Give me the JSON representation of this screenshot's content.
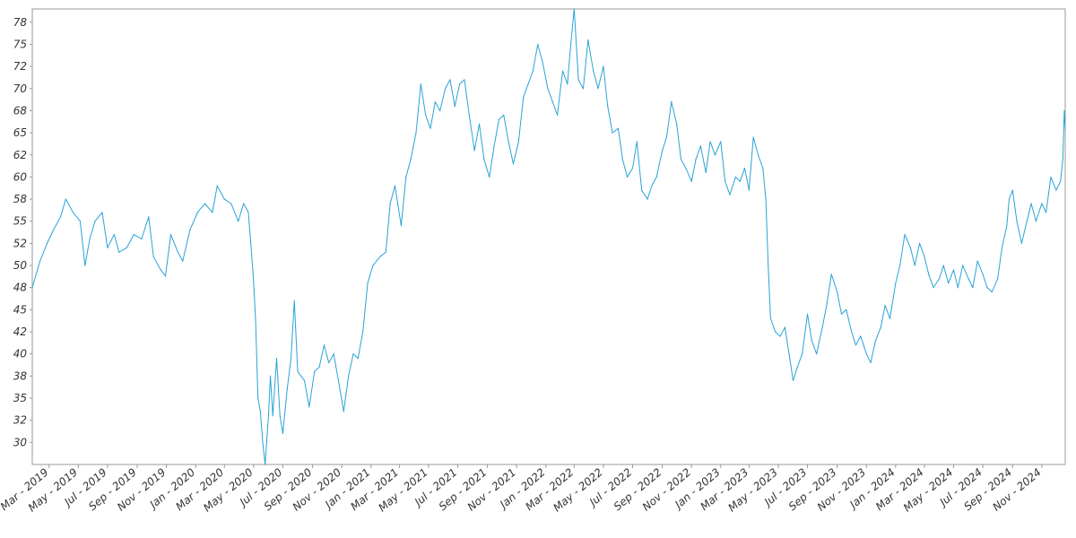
{
  "chart_data": {
    "type": "line",
    "title": "",
    "xlabel": "",
    "ylabel": "",
    "x_range": [
      "2019-01-25",
      "2024-12-20"
    ],
    "ylim": [
      27.5,
      79
    ],
    "y_ticks": [
      30,
      32,
      35,
      38,
      40,
      42,
      45,
      48,
      50,
      52,
      55,
      58,
      60,
      62,
      65,
      68,
      70,
      72,
      75,
      78
    ],
    "y_tick_values": [
      30,
      32.5,
      35,
      37.5,
      40,
      42.5,
      45,
      47.5,
      50,
      52.5,
      55,
      57.5,
      60,
      62.5,
      65,
      67.5,
      70,
      72.5,
      75,
      77.5
    ],
    "x_ticks": [
      "Mar - 2019",
      "May - 2019",
      "Jul - 2019",
      "Sep - 2019",
      "Nov - 2019",
      "Jan - 2020",
      "Mar - 2020",
      "May - 2020",
      "Jul - 2020",
      "Sep - 2020",
      "Nov - 2020",
      "Jan - 2021",
      "Mar - 2021",
      "May - 2021",
      "Jul - 2021",
      "Sep - 2021",
      "Nov - 2021",
      "Jan - 2022",
      "Mar - 2022",
      "May - 2022",
      "Jul - 2022",
      "Sep - 2022",
      "Nov - 2022",
      "Jan - 2023",
      "Mar - 2023",
      "May - 2023",
      "Jul - 2023",
      "Sep - 2023",
      "Nov - 2023",
      "Jan - 2024",
      "Mar - 2024",
      "May - 2024",
      "Jul - 2024",
      "Sep - 2024",
      "Nov - 2024"
    ],
    "x_tick_dates": [
      "2019-03-01",
      "2019-05-01",
      "2019-07-01",
      "2019-09-01",
      "2019-11-01",
      "2020-01-01",
      "2020-03-01",
      "2020-05-01",
      "2020-07-01",
      "2020-09-01",
      "2020-11-01",
      "2021-01-01",
      "2021-03-01",
      "2021-05-01",
      "2021-07-01",
      "2021-09-01",
      "2021-11-01",
      "2022-01-01",
      "2022-03-01",
      "2022-05-01",
      "2022-07-01",
      "2022-09-01",
      "2022-11-01",
      "2023-01-01",
      "2023-03-01",
      "2023-05-01",
      "2023-07-01",
      "2023-09-01",
      "2023-11-01",
      "2024-01-01",
      "2024-03-01",
      "2024-05-01",
      "2024-07-01",
      "2024-09-01",
      "2024-11-01"
    ],
    "grid": false,
    "legend": "none",
    "series": [
      {
        "color": "#29a3d6",
        "points": [
          [
            "2019-01-25",
            47.5
          ],
          [
            "2019-02-10",
            50.5
          ],
          [
            "2019-02-25",
            52.5
          ],
          [
            "2019-03-10",
            54.0
          ],
          [
            "2019-03-25",
            55.5
          ],
          [
            "2019-04-05",
            57.5
          ],
          [
            "2019-04-20",
            56.0
          ],
          [
            "2019-05-05",
            55.0
          ],
          [
            "2019-05-15",
            50.0
          ],
          [
            "2019-05-25",
            53.0
          ],
          [
            "2019-06-05",
            55.0
          ],
          [
            "2019-06-20",
            56.0
          ],
          [
            "2019-07-01",
            52.0
          ],
          [
            "2019-07-15",
            53.5
          ],
          [
            "2019-07-25",
            51.5
          ],
          [
            "2019-08-10",
            52.0
          ],
          [
            "2019-08-25",
            53.5
          ],
          [
            "2019-09-10",
            53.0
          ],
          [
            "2019-09-25",
            55.5
          ],
          [
            "2019-10-05",
            51.0
          ],
          [
            "2019-10-20",
            49.5
          ],
          [
            "2019-10-30",
            48.8
          ],
          [
            "2019-11-10",
            53.5
          ],
          [
            "2019-11-25",
            51.5
          ],
          [
            "2019-12-05",
            50.5
          ],
          [
            "2019-12-20",
            54.0
          ],
          [
            "2020-01-05",
            56.0
          ],
          [
            "2020-01-20",
            57.0
          ],
          [
            "2020-02-05",
            56.0
          ],
          [
            "2020-02-15",
            59.0
          ],
          [
            "2020-03-01",
            57.5
          ],
          [
            "2020-03-15",
            57.0
          ],
          [
            "2020-03-30",
            55.0
          ],
          [
            "2020-04-10",
            57.0
          ],
          [
            "2020-04-20",
            56.0
          ],
          [
            "2020-04-30",
            49.0
          ],
          [
            "2020-05-05",
            44.0
          ],
          [
            "2020-05-10",
            35.0
          ],
          [
            "2020-05-15",
            33.5
          ],
          [
            "2020-05-20",
            30.0
          ],
          [
            "2020-05-25",
            27.5
          ],
          [
            "2020-06-01",
            33.0
          ],
          [
            "2020-06-05",
            37.5
          ],
          [
            "2020-06-10",
            33.0
          ],
          [
            "2020-06-18",
            39.5
          ],
          [
            "2020-06-25",
            33.0
          ],
          [
            "2020-07-01",
            31.0
          ],
          [
            "2020-07-10",
            36.0
          ],
          [
            "2020-07-18",
            39.5
          ],
          [
            "2020-07-25",
            46.0
          ],
          [
            "2020-08-01",
            38.0
          ],
          [
            "2020-08-15",
            37.0
          ],
          [
            "2020-08-25",
            34.0
          ],
          [
            "2020-09-05",
            38.0
          ],
          [
            "2020-09-15",
            38.5
          ],
          [
            "2020-09-25",
            41.0
          ],
          [
            "2020-10-05",
            39.0
          ],
          [
            "2020-10-15",
            40.0
          ],
          [
            "2020-10-25",
            37.0
          ],
          [
            "2020-11-05",
            33.5
          ],
          [
            "2020-11-15",
            37.5
          ],
          [
            "2020-11-25",
            40.0
          ],
          [
            "2020-12-05",
            39.5
          ],
          [
            "2020-12-15",
            42.5
          ],
          [
            "2020-12-25",
            48.0
          ],
          [
            "2021-01-05",
            50.0
          ],
          [
            "2021-01-20",
            51.0
          ],
          [
            "2021-02-01",
            51.5
          ],
          [
            "2021-02-10",
            57.0
          ],
          [
            "2021-02-20",
            59.0
          ],
          [
            "2021-03-05",
            54.5
          ],
          [
            "2021-03-15",
            60.0
          ],
          [
            "2021-03-25",
            62.0
          ],
          [
            "2021-04-05",
            65.0
          ],
          [
            "2021-04-15",
            70.5
          ],
          [
            "2021-04-25",
            67.0
          ],
          [
            "2021-05-05",
            65.5
          ],
          [
            "2021-05-15",
            68.5
          ],
          [
            "2021-05-25",
            67.5
          ],
          [
            "2021-06-05",
            70.0
          ],
          [
            "2021-06-15",
            71.0
          ],
          [
            "2021-06-25",
            68.0
          ],
          [
            "2021-07-05",
            70.5
          ],
          [
            "2021-07-15",
            71.0
          ],
          [
            "2021-07-25",
            67.0
          ],
          [
            "2021-08-05",
            63.0
          ],
          [
            "2021-08-15",
            66.0
          ],
          [
            "2021-08-25",
            62.0
          ],
          [
            "2021-09-05",
            60.0
          ],
          [
            "2021-09-15",
            63.5
          ],
          [
            "2021-09-25",
            66.5
          ],
          [
            "2021-10-05",
            67.0
          ],
          [
            "2021-10-15",
            64.0
          ],
          [
            "2021-10-25",
            61.5
          ],
          [
            "2021-11-05",
            64.0
          ],
          [
            "2021-11-15",
            69.0
          ],
          [
            "2021-11-25",
            70.5
          ],
          [
            "2021-12-05",
            72.0
          ],
          [
            "2021-12-15",
            75.0
          ],
          [
            "2021-12-25",
            73.0
          ],
          [
            "2022-01-05",
            70.0
          ],
          [
            "2022-01-15",
            68.5
          ],
          [
            "2022-01-25",
            67.0
          ],
          [
            "2022-02-05",
            72.0
          ],
          [
            "2022-02-15",
            70.5
          ],
          [
            "2022-02-22",
            75.0
          ],
          [
            "2022-03-01",
            79.0
          ],
          [
            "2022-03-10",
            71.0
          ],
          [
            "2022-03-20",
            70.0
          ],
          [
            "2022-03-30",
            75.5
          ],
          [
            "2022-04-10",
            72.0
          ],
          [
            "2022-04-20",
            70.0
          ],
          [
            "2022-05-01",
            72.5
          ],
          [
            "2022-05-10",
            68.0
          ],
          [
            "2022-05-20",
            65.0
          ],
          [
            "2022-06-01",
            65.5
          ],
          [
            "2022-06-10",
            62.0
          ],
          [
            "2022-06-20",
            60.0
          ],
          [
            "2022-07-01",
            61.0
          ],
          [
            "2022-07-10",
            64.0
          ],
          [
            "2022-07-20",
            58.5
          ],
          [
            "2022-08-01",
            57.5
          ],
          [
            "2022-08-10",
            59.0
          ],
          [
            "2022-08-20",
            60.0
          ],
          [
            "2022-09-01",
            63.0
          ],
          [
            "2022-09-10",
            64.5
          ],
          [
            "2022-09-20",
            68.5
          ],
          [
            "2022-10-01",
            66.0
          ],
          [
            "2022-10-10",
            62.0
          ],
          [
            "2022-10-20",
            61.0
          ],
          [
            "2022-11-01",
            59.5
          ],
          [
            "2022-11-10",
            62.0
          ],
          [
            "2022-11-20",
            63.5
          ],
          [
            "2022-12-01",
            60.5
          ],
          [
            "2022-12-10",
            64.0
          ],
          [
            "2022-12-20",
            62.5
          ],
          [
            "2023-01-01",
            64.0
          ],
          [
            "2023-01-10",
            59.5
          ],
          [
            "2023-01-20",
            58.0
          ],
          [
            "2023-02-01",
            60.0
          ],
          [
            "2023-02-10",
            59.5
          ],
          [
            "2023-02-20",
            61.0
          ],
          [
            "2023-03-01",
            58.5
          ],
          [
            "2023-03-10",
            64.5
          ],
          [
            "2023-03-20",
            62.5
          ],
          [
            "2023-03-30",
            61.0
          ],
          [
            "2023-04-05",
            57.5
          ],
          [
            "2023-04-10",
            50.0
          ],
          [
            "2023-04-15",
            44.0
          ],
          [
            "2023-04-25",
            42.5
          ],
          [
            "2023-05-05",
            42.0
          ],
          [
            "2023-05-15",
            43.0
          ],
          [
            "2023-05-25",
            39.5
          ],
          [
            "2023-06-01",
            37.0
          ],
          [
            "2023-06-10",
            38.5
          ],
          [
            "2023-06-20",
            40.0
          ],
          [
            "2023-07-01",
            44.5
          ],
          [
            "2023-07-10",
            41.5
          ],
          [
            "2023-07-20",
            40.0
          ],
          [
            "2023-08-01",
            43.0
          ],
          [
            "2023-08-10",
            45.5
          ],
          [
            "2023-08-20",
            49.0
          ],
          [
            "2023-09-01",
            47.0
          ],
          [
            "2023-09-10",
            44.5
          ],
          [
            "2023-09-20",
            45.0
          ],
          [
            "2023-10-01",
            42.5
          ],
          [
            "2023-10-10",
            41.0
          ],
          [
            "2023-10-20",
            42.0
          ],
          [
            "2023-11-01",
            40.0
          ],
          [
            "2023-11-10",
            39.0
          ],
          [
            "2023-11-20",
            41.5
          ],
          [
            "2023-12-01",
            43.0
          ],
          [
            "2023-12-10",
            45.5
          ],
          [
            "2023-12-20",
            44.0
          ],
          [
            "2024-01-01",
            48.0
          ],
          [
            "2024-01-10",
            50.0
          ],
          [
            "2024-01-20",
            53.5
          ],
          [
            "2024-02-01",
            52.0
          ],
          [
            "2024-02-10",
            50.0
          ],
          [
            "2024-02-20",
            52.5
          ],
          [
            "2024-03-01",
            51.0
          ],
          [
            "2024-03-10",
            49.0
          ],
          [
            "2024-03-20",
            47.5
          ],
          [
            "2024-04-01",
            48.5
          ],
          [
            "2024-04-10",
            50.0
          ],
          [
            "2024-04-20",
            48.0
          ],
          [
            "2024-05-01",
            49.5
          ],
          [
            "2024-05-10",
            47.5
          ],
          [
            "2024-05-20",
            50.0
          ],
          [
            "2024-06-01",
            48.5
          ],
          [
            "2024-06-10",
            47.5
          ],
          [
            "2024-06-20",
            50.5
          ],
          [
            "2024-07-01",
            49.0
          ],
          [
            "2024-07-10",
            47.5
          ],
          [
            "2024-07-20",
            47.0
          ],
          [
            "2024-08-01",
            48.5
          ],
          [
            "2024-08-10",
            52.0
          ],
          [
            "2024-08-20",
            54.5
          ],
          [
            "2024-08-25",
            57.5
          ],
          [
            "2024-09-01",
            58.5
          ],
          [
            "2024-09-10",
            55.0
          ],
          [
            "2024-09-20",
            52.5
          ],
          [
            "2024-10-01",
            55.0
          ],
          [
            "2024-10-10",
            57.0
          ],
          [
            "2024-10-20",
            55.0
          ],
          [
            "2024-11-01",
            57.0
          ],
          [
            "2024-11-10",
            56.0
          ],
          [
            "2024-11-20",
            60.0
          ],
          [
            "2024-12-01",
            58.5
          ],
          [
            "2024-12-10",
            59.5
          ],
          [
            "2024-12-15",
            62.0
          ],
          [
            "2024-12-18",
            67.5
          ],
          [
            "2024-12-20",
            65.5
          ]
        ]
      }
    ]
  }
}
